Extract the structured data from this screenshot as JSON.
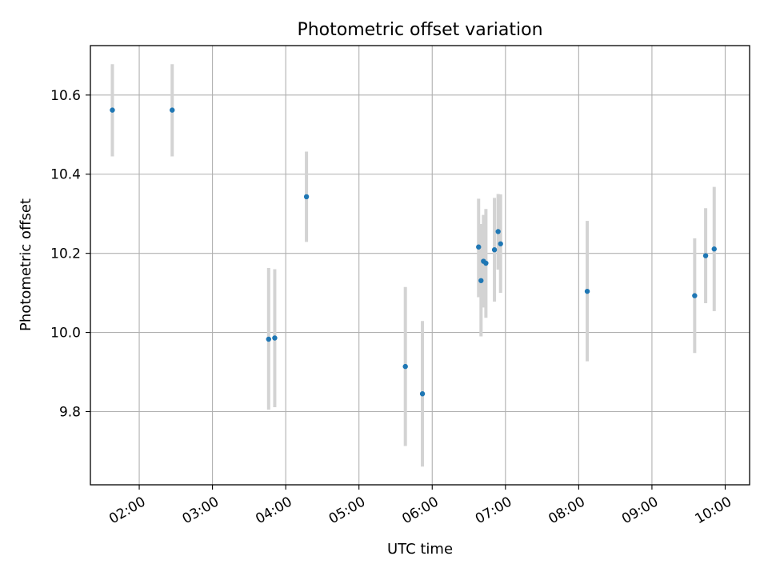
{
  "chart_data": {
    "type": "scatter",
    "title": "Photometric offset variation",
    "xlabel": "UTC time",
    "ylabel": "Photometric offset",
    "x_scale": "time",
    "xlim": [
      "01:20",
      "10:20"
    ],
    "ylim": [
      9.615,
      10.725
    ],
    "x_ticks": [
      "02:00",
      "03:00",
      "04:00",
      "05:00",
      "06:00",
      "07:00",
      "08:00",
      "09:00",
      "10:00"
    ],
    "y_ticks": [
      9.8,
      10.0,
      10.2,
      10.4,
      10.6
    ],
    "y_tick_labels": [
      "9.8",
      "10.0",
      "10.2",
      "10.4",
      "10.6"
    ],
    "grid": true,
    "marker_color": "#1f77b4",
    "errorbar_color": "#d3d3d3",
    "series": [
      {
        "points": [
          {
            "x": "01:38",
            "y": 10.562,
            "ylow": 10.445,
            "yhigh": 10.678
          },
          {
            "x": "02:27",
            "y": 10.562,
            "ylow": 10.445,
            "yhigh": 10.678
          },
          {
            "x": "03:46",
            "y": 9.983,
            "ylow": 9.805,
            "yhigh": 10.163
          },
          {
            "x": "03:51",
            "y": 9.986,
            "ylow": 9.811,
            "yhigh": 10.16
          },
          {
            "x": "04:17",
            "y": 10.343,
            "ylow": 10.229,
            "yhigh": 10.457
          },
          {
            "x": "05:38",
            "y": 9.914,
            "ylow": 9.713,
            "yhigh": 10.115
          },
          {
            "x": "05:52",
            "y": 9.845,
            "ylow": 9.661,
            "yhigh": 10.029
          },
          {
            "x": "06:38",
            "y": 10.216,
            "ylow": 10.089,
            "yhigh": 10.338
          },
          {
            "x": "06:40",
            "y": 10.131,
            "ylow": 9.99,
            "yhigh": 10.274
          },
          {
            "x": "06:42",
            "y": 10.18,
            "ylow": 10.063,
            "yhigh": 10.297
          },
          {
            "x": "06:44",
            "y": 10.175,
            "ylow": 10.037,
            "yhigh": 10.312
          },
          {
            "x": "06:51",
            "y": 10.209,
            "ylow": 10.078,
            "yhigh": 10.34
          },
          {
            "x": "06:54",
            "y": 10.255,
            "ylow": 10.159,
            "yhigh": 10.35
          },
          {
            "x": "06:56",
            "y": 10.224,
            "ylow": 10.1,
            "yhigh": 10.349
          },
          {
            "x": "08:07",
            "y": 10.104,
            "ylow": 9.927,
            "yhigh": 10.282
          },
          {
            "x": "09:35",
            "y": 10.093,
            "ylow": 9.948,
            "yhigh": 10.238
          },
          {
            "x": "09:44",
            "y": 10.194,
            "ylow": 10.074,
            "yhigh": 10.314
          },
          {
            "x": "09:51",
            "y": 10.211,
            "ylow": 10.054,
            "yhigh": 10.368
          }
        ]
      }
    ]
  }
}
